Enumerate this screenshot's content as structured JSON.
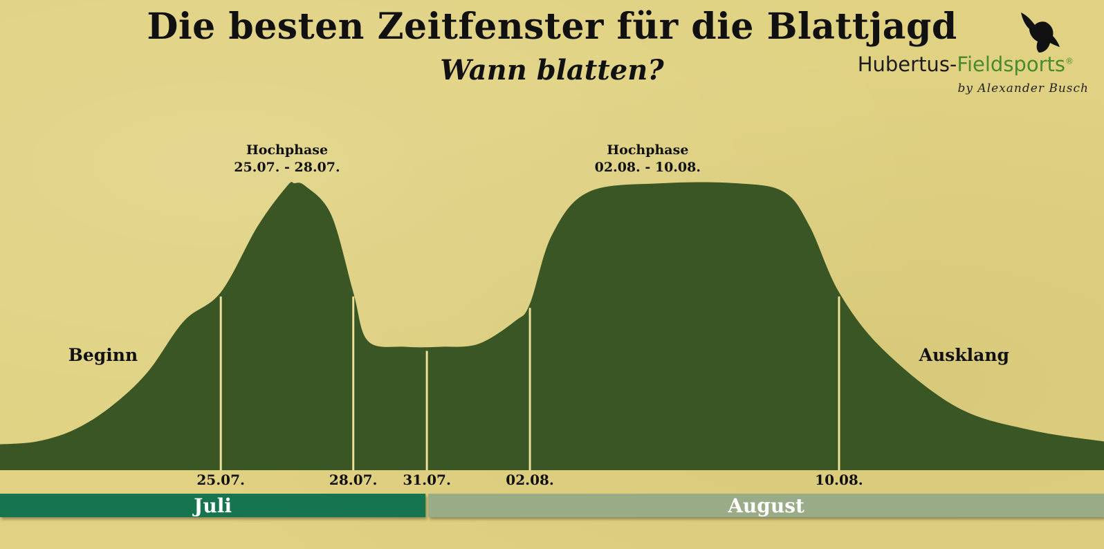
{
  "title": "Die besten Zeitfenster für die Blattjagd",
  "subtitle": "Wann blatten?",
  "logo": {
    "brand_part1": "Hubertus-",
    "brand_part2": "Fieldsports",
    "registered": "®",
    "byline": "by Alexander Busch",
    "icon": "bird-silhouette-icon"
  },
  "colors": {
    "background": "#e0d282",
    "area": "#3a5625",
    "divider": "#ece09a",
    "juli_bar": "#17744f",
    "august_bar": "#9aab88"
  },
  "chart_data": {
    "type": "area",
    "x_unit": "days from 19.07.",
    "curve": [
      {
        "x": 0.0,
        "y": 0.09
      },
      {
        "x": 1.0,
        "y": 0.1
      },
      {
        "x": 2.0,
        "y": 0.14
      },
      {
        "x": 3.0,
        "y": 0.22
      },
      {
        "x": 4.0,
        "y": 0.34
      },
      {
        "x": 5.0,
        "y": 0.52
      },
      {
        "x": 6.0,
        "y": 0.62
      },
      {
        "x": 7.0,
        "y": 0.85
      },
      {
        "x": 7.8,
        "y": 0.99
      },
      {
        "x": 8.0,
        "y": 1.0
      },
      {
        "x": 8.3,
        "y": 0.99
      },
      {
        "x": 9.0,
        "y": 0.89
      },
      {
        "x": 9.6,
        "y": 0.62
      },
      {
        "x": 10.0,
        "y": 0.45
      },
      {
        "x": 11.0,
        "y": 0.43
      },
      {
        "x": 12.0,
        "y": 0.43
      },
      {
        "x": 13.0,
        "y": 0.44
      },
      {
        "x": 14.0,
        "y": 0.52
      },
      {
        "x": 14.4,
        "y": 0.58
      },
      {
        "x": 15.0,
        "y": 0.82
      },
      {
        "x": 16.0,
        "y": 0.97
      },
      {
        "x": 18.0,
        "y": 1.0
      },
      {
        "x": 20.0,
        "y": 1.0
      },
      {
        "x": 21.3,
        "y": 0.97
      },
      {
        "x": 22.0,
        "y": 0.85
      },
      {
        "x": 22.8,
        "y": 0.62
      },
      {
        "x": 24.0,
        "y": 0.42
      },
      {
        "x": 26.0,
        "y": 0.22
      },
      {
        "x": 28.0,
        "y": 0.14
      },
      {
        "x": 30.0,
        "y": 0.1
      }
    ],
    "dividers": [
      {
        "x": 6.0,
        "label": "25.07."
      },
      {
        "x": 9.6,
        "label": "28.07."
      },
      {
        "x": 11.6,
        "label": "31.07."
      },
      {
        "x": 14.4,
        "label": "02.08."
      },
      {
        "x": 22.8,
        "label": "10.08."
      }
    ],
    "annotations": [
      {
        "x": 7.8,
        "y": 1.0,
        "line1": "Hochphase",
        "line2": "25.07. - 28.07."
      },
      {
        "x": 17.6,
        "y": 1.0,
        "line1": "Hochphase",
        "line2": "02.08. - 10.08."
      }
    ],
    "zone_labels": [
      {
        "x": 2.8,
        "y": 0.4,
        "text": "Beginn"
      },
      {
        "x": 26.2,
        "y": 0.4,
        "text": "Ausklang"
      }
    ],
    "months": [
      {
        "label": "Juli",
        "from": 0,
        "to": 11.6,
        "color": "#17744f"
      },
      {
        "label": "August",
        "from": 11.6,
        "to": 30,
        "color": "#9aab88"
      }
    ],
    "xlim": [
      0,
      30
    ],
    "ylim": [
      0,
      1
    ]
  }
}
